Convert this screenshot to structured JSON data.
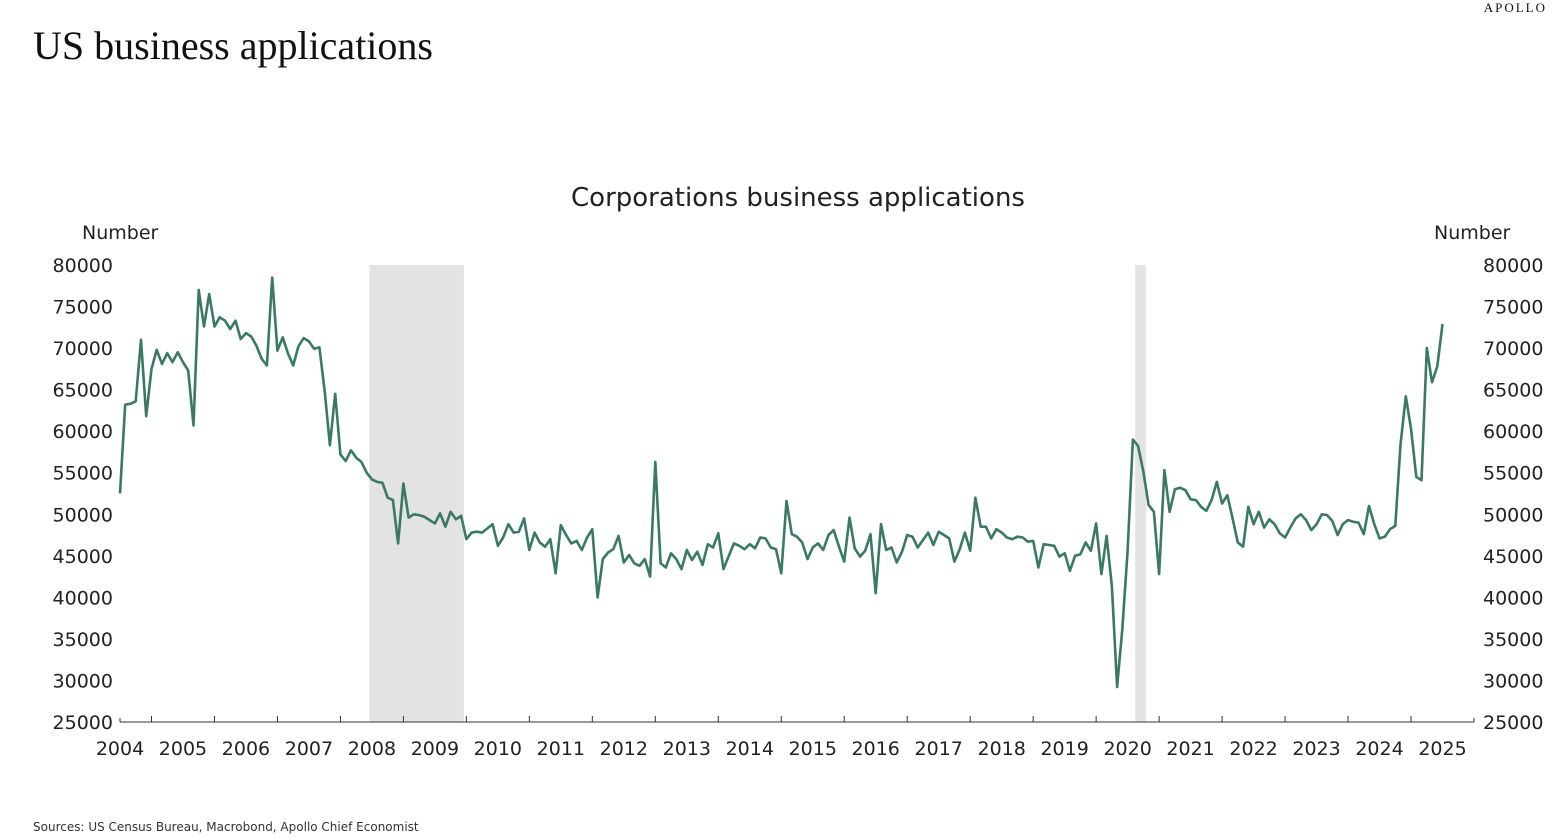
{
  "brand": "APOLLO",
  "title": "US business applications",
  "source": "Sources: US Census Bureau, Macrobond, Apollo Chief Economist",
  "colors": {
    "line": "#3a7a64",
    "recession": "#e2e3e2",
    "text": "#222222"
  },
  "chart_data": {
    "type": "line",
    "title": "Corporations business applications",
    "ylabel_left": "Number",
    "ylabel_right": "Number",
    "ylim": [
      25000,
      80000
    ],
    "yticks": [
      80000,
      75000,
      70000,
      65000,
      60000,
      55000,
      50000,
      45000,
      40000,
      35000,
      30000,
      25000
    ],
    "xlim": [
      2004,
      2025.5
    ],
    "xticks": [
      "2004",
      "2005",
      "2006",
      "2007",
      "2008",
      "2009",
      "2010",
      "2011",
      "2012",
      "2013",
      "2014",
      "2015",
      "2016",
      "2017",
      "2018",
      "2019",
      "2020",
      "2021",
      "2022",
      "2023",
      "2024",
      "2025"
    ],
    "grid": false,
    "legend": "none",
    "recessions": [
      [
        2007.96,
        2009.46
      ],
      [
        2020.12,
        2020.29
      ]
    ],
    "series": [
      {
        "start": "2004-01",
        "frequency": "monthly",
        "values": [
          52500,
          63200,
          63300,
          63600,
          71000,
          61800,
          67500,
          69800,
          68100,
          69400,
          68300,
          69500,
          68300,
          67300,
          60700,
          77000,
          72600,
          76500,
          72600,
          73700,
          73300,
          72300,
          73300,
          71100,
          71800,
          71400,
          70300,
          68700,
          67900,
          78500,
          69700,
          71300,
          69400,
          67900,
          70200,
          71200,
          70800,
          69900,
          70100,
          64800,
          58300,
          64500,
          57200,
          56400,
          57700,
          56800,
          56300,
          55000,
          54200,
          53900,
          53800,
          52000,
          51700,
          46500,
          53700,
          49600,
          50000,
          49900,
          49700,
          49300,
          48900,
          50100,
          48500,
          50300,
          49400,
          49800,
          47000,
          47800,
          47900,
          47800,
          48300,
          48800,
          46200,
          47200,
          48800,
          47800,
          47900,
          49500,
          45700,
          47800,
          46600,
          46100,
          47000,
          42900,
          48700,
          47500,
          46500,
          46800,
          45700,
          47200,
          48200,
          40000,
          44600,
          45400,
          45800,
          47400,
          44200,
          45100,
          44100,
          43800,
          44600,
          42500,
          56300,
          44100,
          43600,
          45300,
          44600,
          43400,
          45700,
          44500,
          45500,
          43900,
          46400,
          46000,
          47700,
          43400,
          45000,
          46500,
          46200,
          45800,
          46400,
          45900,
          47200,
          47100,
          46000,
          45800,
          42900,
          51600,
          47600,
          47300,
          46600,
          44600,
          46000,
          46500,
          45700,
          47500,
          48100,
          46100,
          44300,
          49600,
          45900,
          44900,
          45600,
          47600,
          40500,
          48800,
          45700,
          46000,
          44200,
          45500,
          47500,
          47300,
          46000,
          46900,
          47800,
          46300,
          47900,
          47500,
          47100,
          44300,
          45800,
          47800,
          45600,
          52000,
          48500,
          48500,
          47100,
          48200,
          47800,
          47200,
          47000,
          47300,
          47200,
          46700,
          46800,
          43600,
          46400,
          46300,
          46200,
          44900,
          45300,
          43200,
          45000,
          45200,
          46600,
          45600,
          48900,
          42800,
          47400,
          41300,
          29200,
          36300,
          45600,
          59000,
          58200,
          55100,
          51100,
          50300,
          42800,
          55300,
          50300,
          53000,
          53200,
          52900,
          51800,
          51700,
          50900,
          50400,
          51700,
          53900,
          51300,
          52300,
          49500,
          46600,
          46100,
          50900,
          48800,
          50300,
          48400,
          49400,
          48800,
          47700,
          47200,
          48400,
          49500,
          50000,
          49300,
          48100,
          48800,
          50000,
          49900,
          49200,
          47500,
          48800,
          49300,
          49100,
          49000,
          47600,
          51000,
          48800,
          47100,
          47300,
          48200,
          48600,
          58400,
          64200,
          60300,
          54500,
          54100,
          70000,
          65900,
          67800,
          72900
        ]
      }
    ]
  }
}
